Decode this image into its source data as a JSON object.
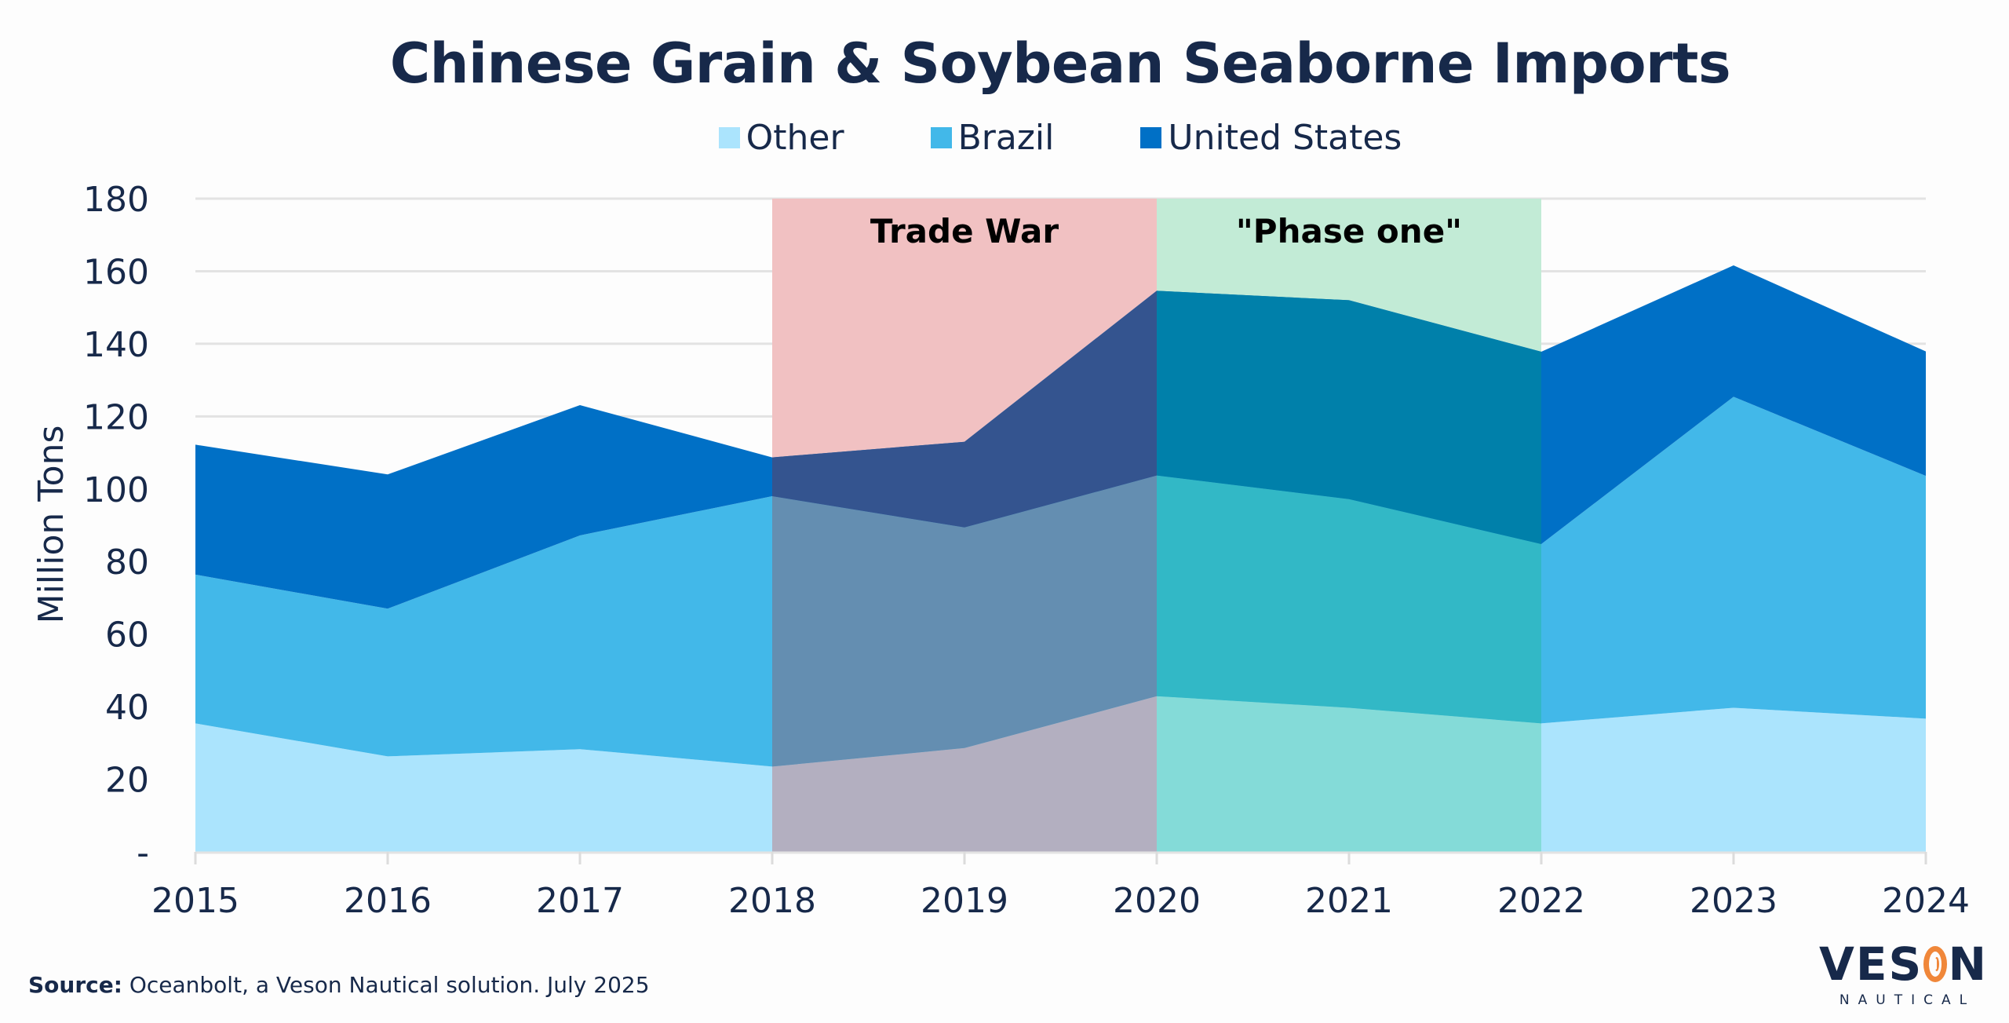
{
  "title": "Chinese Grain & Soybean Seaborne Imports",
  "legend": [
    {
      "label": "Other",
      "color": "#ABE4FD"
    },
    {
      "label": "Brazil",
      "color": "#42B8E9"
    },
    {
      "label": "United States",
      "color": "#0070C6"
    }
  ],
  "source": {
    "prefix": "Source:",
    "text": " Oceanbolt, a Veson Nautical solution. July 2025"
  },
  "logo": {
    "main_left": "VES",
    "main_right": "N",
    "sub": "NAUTICAL"
  },
  "annotations": [
    {
      "label": "Trade War",
      "from": "2018",
      "to": "2020",
      "color": "#F1C1C2",
      "overlay_colors": {
        "Other": "#B3AFC0",
        "Brazil": "#648EB1",
        "United States": "#34548F"
      }
    },
    {
      "label": "\"Phase one\"",
      "from": "2020",
      "to": "2022",
      "color": "#C2EBD6",
      "overlay_colors": {
        "Other": "#84DBD8",
        "Brazil": "#32B8C6",
        "United States": "#0080AA"
      }
    }
  ],
  "chart_data": {
    "type": "area",
    "stacked": true,
    "title": "Chinese Grain & Soybean Seaborne Imports",
    "xlabel": "",
    "ylabel": "Million Tons",
    "categories": [
      "2015",
      "2016",
      "2017",
      "2018",
      "2019",
      "2020",
      "2021",
      "2022",
      "2023",
      "2024"
    ],
    "series": [
      {
        "name": "Other",
        "color": "#ABE4FD",
        "values": [
          35.4,
          26.3,
          28.3,
          23.5,
          28.6,
          42.9,
          39.7,
          35.4,
          39.7,
          36.7
        ]
      },
      {
        "name": "Brazil",
        "color": "#42B8E9",
        "values": [
          41.0,
          40.7,
          58.9,
          74.5,
          60.8,
          60.8,
          57.5,
          49.4,
          85.7,
          66.9
        ]
      },
      {
        "name": "United States",
        "color": "#0070C6",
        "values": [
          35.8,
          37.0,
          35.9,
          10.7,
          23.6,
          50.9,
          54.8,
          53.0,
          36.2,
          34.3
        ]
      }
    ],
    "totals": [
      112.2,
      104.0,
      123.1,
      108.7,
      113.0,
      154.6,
      152.0,
      137.8,
      161.6,
      137.9
    ],
    "ylim": [
      0,
      180
    ],
    "yticks": [
      0,
      20,
      40,
      60,
      80,
      100,
      120,
      140,
      160,
      180
    ],
    "ytick_labels": [
      "-",
      "20",
      "40",
      "60",
      "80",
      "100",
      "120",
      "140",
      "160",
      "180"
    ],
    "grid": true,
    "legend_position": "top",
    "shaded_periods": [
      {
        "label": "Trade War",
        "from": "2018",
        "to": "2020"
      },
      {
        "label": "\"Phase one\"",
        "from": "2020",
        "to": "2022"
      }
    ]
  }
}
